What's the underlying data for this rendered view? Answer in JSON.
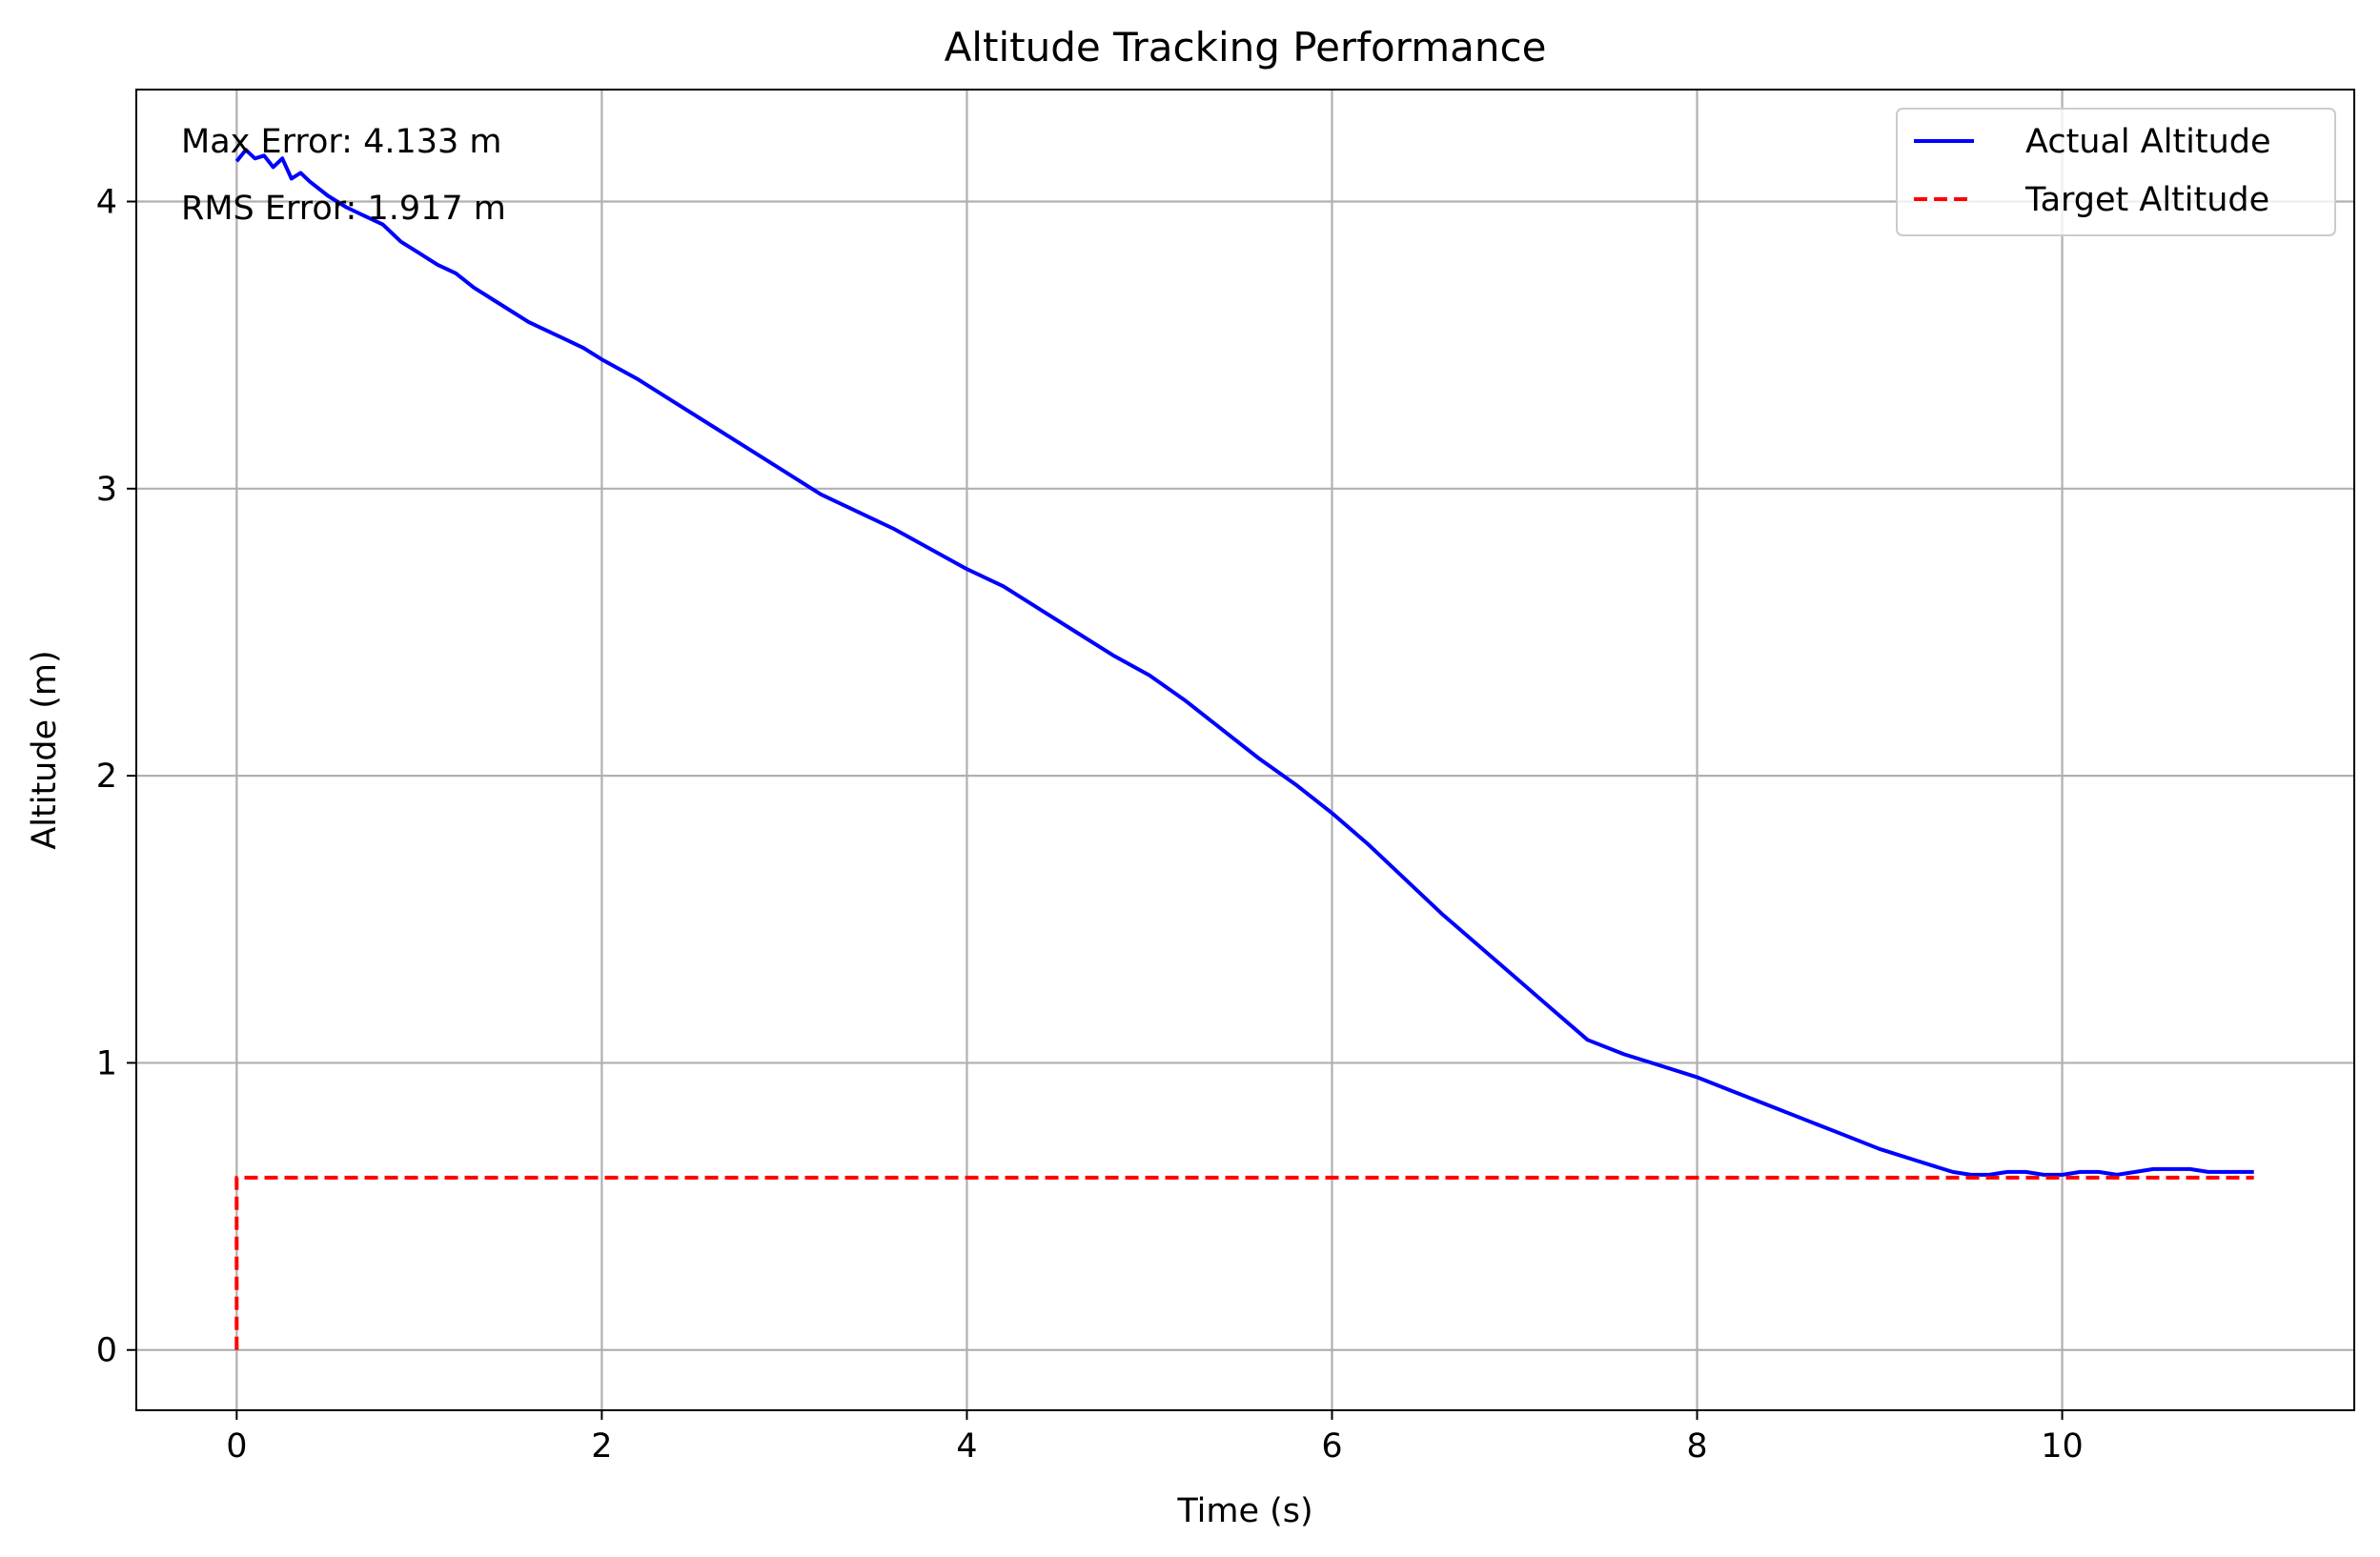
{
  "chart_data": {
    "type": "line",
    "title": "Altitude Tracking Performance",
    "xlabel": "Time (s)",
    "ylabel": "Altitude (m)",
    "xlim": [
      -0.55,
      11.6
    ],
    "ylim": [
      -0.21,
      4.39
    ],
    "xticks": [
      0,
      2,
      4,
      6,
      8,
      10
    ],
    "yticks": [
      0,
      1,
      2,
      3,
      4
    ],
    "grid": true,
    "legend_position": "top-right",
    "annotations": [
      "Max Error: 4.133 m",
      "RMS Error: 1.917 m"
    ],
    "series": [
      {
        "name": "Actual Altitude",
        "color": "#0000ff",
        "style": "solid",
        "x": [
          0,
          0.05,
          0.1,
          0.15,
          0.2,
          0.25,
          0.3,
          0.35,
          0.4,
          0.5,
          0.6,
          0.7,
          0.8,
          0.9,
          1.0,
          1.1,
          1.2,
          1.3,
          1.4,
          1.5,
          1.6,
          1.7,
          1.8,
          1.9,
          2.0,
          2.2,
          2.4,
          2.6,
          2.8,
          3.0,
          3.2,
          3.4,
          3.6,
          3.8,
          4.0,
          4.2,
          4.4,
          4.6,
          4.8,
          5.0,
          5.2,
          5.4,
          5.6,
          5.8,
          6.0,
          6.2,
          6.4,
          6.6,
          6.8,
          7.0,
          7.2,
          7.4,
          7.6,
          7.8,
          8.0,
          8.2,
          8.4,
          8.6,
          8.8,
          9.0,
          9.2,
          9.4,
          9.5,
          9.6,
          9.7,
          9.8,
          9.9,
          10.0,
          10.1,
          10.2,
          10.3,
          10.4,
          10.5,
          10.6,
          10.7,
          10.8,
          10.9,
          11.0,
          11.05
        ],
        "y": [
          4.14,
          4.18,
          4.15,
          4.16,
          4.12,
          4.15,
          4.08,
          4.1,
          4.07,
          4.02,
          3.98,
          3.95,
          3.92,
          3.86,
          3.82,
          3.78,
          3.75,
          3.7,
          3.66,
          3.62,
          3.58,
          3.55,
          3.52,
          3.49,
          3.45,
          3.38,
          3.3,
          3.22,
          3.14,
          3.06,
          2.98,
          2.92,
          2.86,
          2.79,
          2.72,
          2.66,
          2.58,
          2.5,
          2.42,
          2.35,
          2.26,
          2.16,
          2.06,
          1.97,
          1.87,
          1.76,
          1.64,
          1.52,
          1.41,
          1.3,
          1.19,
          1.08,
          1.03,
          0.99,
          0.95,
          0.9,
          0.85,
          0.8,
          0.75,
          0.7,
          0.66,
          0.62,
          0.61,
          0.61,
          0.62,
          0.62,
          0.61,
          0.61,
          0.62,
          0.62,
          0.61,
          0.62,
          0.63,
          0.63,
          0.63,
          0.62,
          0.62,
          0.62,
          0.62
        ]
      },
      {
        "name": "Target Altitude",
        "color": "#ff0000",
        "style": "dashed",
        "x": [
          0,
          0,
          11.05
        ],
        "y": [
          0,
          0.6,
          0.6
        ]
      }
    ]
  }
}
